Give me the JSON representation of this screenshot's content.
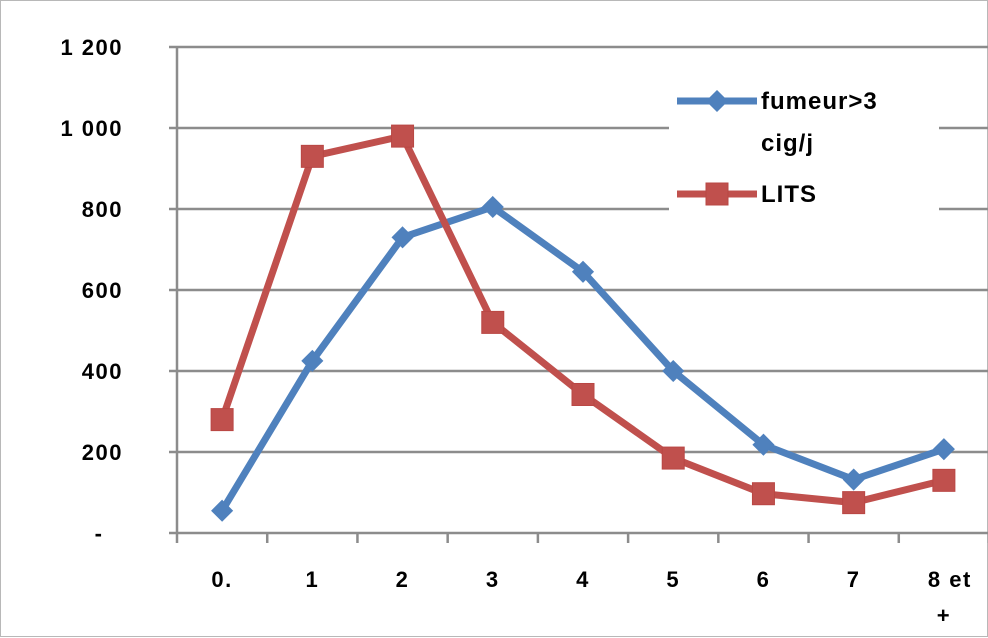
{
  "chart_data": {
    "type": "line",
    "categories": [
      "0.",
      "1",
      "2",
      "3",
      "4",
      "5",
      "6",
      "7",
      "8 et +"
    ],
    "ylim": [
      0,
      1200
    ],
    "yticks": [
      {
        "value": 0,
        "label": "-"
      },
      {
        "value": 200,
        "label": "200"
      },
      {
        "value": 400,
        "label": "400"
      },
      {
        "value": 600,
        "label": "600"
      },
      {
        "value": 800,
        "label": "800"
      },
      {
        "value": 1000,
        "label": "1 000"
      },
      {
        "value": 1200,
        "label": "1 200"
      }
    ],
    "grid": true,
    "legend_position": "top-right",
    "series": [
      {
        "name": "fumeur>3 cig/j",
        "color": "#4f81bd",
        "marker": "diamond",
        "values": [
          55,
          425,
          730,
          805,
          645,
          400,
          218,
          132,
          207
        ]
      },
      {
        "name": "LITS",
        "color": "#c0504d",
        "marker": "square",
        "values": [
          280,
          930,
          980,
          520,
          342,
          185,
          97,
          75,
          130
        ]
      }
    ]
  }
}
